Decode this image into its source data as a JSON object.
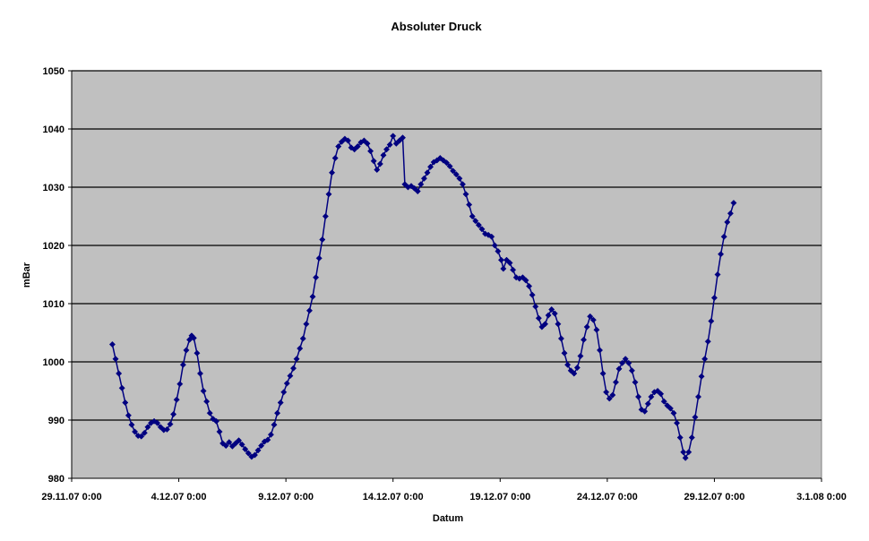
{
  "chart_data": {
    "type": "line",
    "title": "Absoluter Druck",
    "xlabel": "Datum",
    "ylabel": "mBar",
    "ylim": [
      980,
      1050
    ],
    "y_ticks": [
      980,
      990,
      1000,
      1010,
      1020,
      1030,
      1040,
      1050
    ],
    "x_tick_labels": [
      "29.11.07 0:00",
      "4.12.07 0:00",
      "9.12.07 0:00",
      "14.12.07 0:00",
      "19.12.07 0:00",
      "24.12.07 0:00",
      "29.12.07 0:00",
      "3.1.08 0:00"
    ],
    "xlim_days": [
      0,
      35
    ],
    "grid": "horizontal",
    "plot_background": "#c0c0c0",
    "series_color": "#000080",
    "marker": "diamond",
    "series": [
      {
        "points": [
          [
            1.9,
            1003
          ],
          [
            2.05,
            1000.5
          ],
          [
            2.2,
            998
          ],
          [
            2.35,
            995.5
          ],
          [
            2.5,
            993
          ],
          [
            2.65,
            990.8
          ],
          [
            2.8,
            989.2
          ],
          [
            2.95,
            988
          ],
          [
            3.1,
            987.3
          ],
          [
            3.25,
            987.2
          ],
          [
            3.4,
            987.8
          ],
          [
            3.55,
            988.8
          ],
          [
            3.7,
            989.5
          ],
          [
            3.85,
            989.8
          ],
          [
            4.0,
            989.5
          ],
          [
            4.15,
            988.8
          ],
          [
            4.3,
            988.3
          ],
          [
            4.45,
            988.4
          ],
          [
            4.6,
            989.3
          ],
          [
            4.75,
            991
          ],
          [
            4.9,
            993.5
          ],
          [
            5.05,
            996.2
          ],
          [
            5.2,
            999.5
          ],
          [
            5.35,
            1002
          ],
          [
            5.5,
            1003.8
          ],
          [
            5.6,
            1004.5
          ],
          [
            5.7,
            1004.1
          ],
          [
            5.85,
            1001.5
          ],
          [
            6.0,
            998
          ],
          [
            6.15,
            995
          ],
          [
            6.3,
            993.2
          ],
          [
            6.45,
            991.2
          ],
          [
            6.6,
            990.2
          ],
          [
            6.75,
            989.8
          ],
          [
            6.9,
            988
          ],
          [
            7.05,
            986
          ],
          [
            7.2,
            985.6
          ],
          [
            7.35,
            986.2
          ],
          [
            7.5,
            985.5
          ],
          [
            7.65,
            986
          ],
          [
            7.8,
            986.5
          ],
          [
            7.95,
            985.8
          ],
          [
            8.1,
            985
          ],
          [
            8.25,
            984.3
          ],
          [
            8.4,
            983.7
          ],
          [
            8.55,
            984
          ],
          [
            8.7,
            984.8
          ],
          [
            8.85,
            985.6
          ],
          [
            9.0,
            986.3
          ],
          [
            9.15,
            986.6
          ],
          [
            9.3,
            987.5
          ],
          [
            9.45,
            989.2
          ],
          [
            9.6,
            991.2
          ],
          [
            9.75,
            993
          ],
          [
            9.9,
            994.8
          ],
          [
            10.05,
            996.3
          ],
          [
            10.2,
            997.6
          ],
          [
            10.35,
            998.9
          ],
          [
            10.5,
            1000.5
          ],
          [
            10.65,
            1002.3
          ],
          [
            10.8,
            1004
          ],
          [
            10.95,
            1006.5
          ],
          [
            11.1,
            1008.8
          ],
          [
            11.25,
            1011.2
          ],
          [
            11.4,
            1014.5
          ],
          [
            11.55,
            1017.8
          ],
          [
            11.7,
            1021
          ],
          [
            11.85,
            1025
          ],
          [
            12.0,
            1028.8
          ],
          [
            12.15,
            1032.5
          ],
          [
            12.3,
            1035
          ],
          [
            12.45,
            1037
          ],
          [
            12.6,
            1037.8
          ],
          [
            12.75,
            1038.3
          ],
          [
            12.9,
            1038
          ],
          [
            13.05,
            1036.8
          ],
          [
            13.2,
            1036.5
          ],
          [
            13.35,
            1037
          ],
          [
            13.5,
            1037.7
          ],
          [
            13.65,
            1038
          ],
          [
            13.8,
            1037.5
          ],
          [
            13.95,
            1036.2
          ],
          [
            14.1,
            1034.5
          ],
          [
            14.25,
            1033
          ],
          [
            14.4,
            1034
          ],
          [
            14.55,
            1035.5
          ],
          [
            14.7,
            1036.5
          ],
          [
            14.85,
            1037.3
          ],
          [
            15.0,
            1038.8
          ],
          [
            15.15,
            1037.5
          ],
          [
            15.3,
            1038
          ],
          [
            15.45,
            1038.5
          ],
          [
            15.55,
            1030.5
          ],
          [
            15.7,
            1030
          ],
          [
            15.85,
            1030.2
          ],
          [
            16.0,
            1029.8
          ],
          [
            16.15,
            1029.3
          ],
          [
            16.3,
            1030.5
          ],
          [
            16.45,
            1031.5
          ],
          [
            16.6,
            1032.5
          ],
          [
            16.75,
            1033.5
          ],
          [
            16.9,
            1034.3
          ],
          [
            17.05,
            1034.6
          ],
          [
            17.2,
            1035
          ],
          [
            17.35,
            1034.6
          ],
          [
            17.5,
            1034.2
          ],
          [
            17.65,
            1033.6
          ],
          [
            17.8,
            1032.8
          ],
          [
            17.95,
            1032.2
          ],
          [
            18.1,
            1031.5
          ],
          [
            18.25,
            1030.5
          ],
          [
            18.4,
            1028.8
          ],
          [
            18.55,
            1027
          ],
          [
            18.7,
            1025
          ],
          [
            18.85,
            1024.2
          ],
          [
            19.0,
            1023.5
          ],
          [
            19.15,
            1022.8
          ],
          [
            19.3,
            1022
          ],
          [
            19.45,
            1021.8
          ],
          [
            19.6,
            1021.5
          ],
          [
            19.75,
            1020
          ],
          [
            19.9,
            1019
          ],
          [
            20.05,
            1017.5
          ],
          [
            20.15,
            1016
          ],
          [
            20.3,
            1017.5
          ],
          [
            20.45,
            1017
          ],
          [
            20.6,
            1015.8
          ],
          [
            20.75,
            1014.5
          ],
          [
            20.9,
            1014.3
          ],
          [
            21.05,
            1014.5
          ],
          [
            21.2,
            1014
          ],
          [
            21.35,
            1013
          ],
          [
            21.5,
            1011.5
          ],
          [
            21.65,
            1009.5
          ],
          [
            21.8,
            1007.5
          ],
          [
            21.95,
            1006
          ],
          [
            22.1,
            1006.5
          ],
          [
            22.25,
            1008
          ],
          [
            22.4,
            1009
          ],
          [
            22.55,
            1008.3
          ],
          [
            22.7,
            1006.5
          ],
          [
            22.85,
            1004
          ],
          [
            23.0,
            1001.5
          ],
          [
            23.15,
            999.5
          ],
          [
            23.3,
            998.5
          ],
          [
            23.45,
            998
          ],
          [
            23.6,
            999
          ],
          [
            23.75,
            1001
          ],
          [
            23.9,
            1003.8
          ],
          [
            24.05,
            1006
          ],
          [
            24.2,
            1007.8
          ],
          [
            24.35,
            1007.2
          ],
          [
            24.5,
            1005.5
          ],
          [
            24.65,
            1002
          ],
          [
            24.8,
            998
          ],
          [
            24.95,
            994.8
          ],
          [
            25.1,
            993.7
          ],
          [
            25.25,
            994.3
          ],
          [
            25.4,
            996.5
          ],
          [
            25.55,
            998.8
          ],
          [
            25.7,
            999.8
          ],
          [
            25.85,
            1000.5
          ],
          [
            26.0,
            999.8
          ],
          [
            26.15,
            998.5
          ],
          [
            26.3,
            996.5
          ],
          [
            26.45,
            994
          ],
          [
            26.6,
            991.8
          ],
          [
            26.75,
            991.5
          ],
          [
            26.9,
            992.8
          ],
          [
            27.05,
            994
          ],
          [
            27.2,
            994.8
          ],
          [
            27.35,
            995
          ],
          [
            27.5,
            994.5
          ],
          [
            27.65,
            993.2
          ],
          [
            27.8,
            992.5
          ],
          [
            27.95,
            992
          ],
          [
            28.1,
            991.2
          ],
          [
            28.25,
            989.5
          ],
          [
            28.4,
            987
          ],
          [
            28.55,
            984.5
          ],
          [
            28.65,
            983.5
          ],
          [
            28.8,
            984.5
          ],
          [
            28.95,
            987
          ],
          [
            29.1,
            990.5
          ],
          [
            29.25,
            994
          ],
          [
            29.4,
            997.5
          ],
          [
            29.55,
            1000.5
          ],
          [
            29.7,
            1003.5
          ],
          [
            29.85,
            1007
          ],
          [
            30.0,
            1011
          ],
          [
            30.15,
            1015
          ],
          [
            30.3,
            1018.5
          ],
          [
            30.45,
            1021.5
          ],
          [
            30.6,
            1024
          ],
          [
            30.75,
            1025.5
          ],
          [
            30.9,
            1027.3
          ]
        ]
      }
    ]
  }
}
